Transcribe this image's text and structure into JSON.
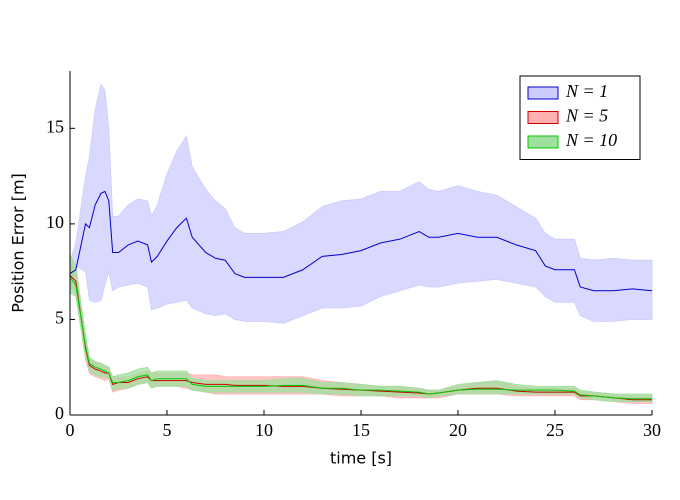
{
  "chart_data": {
    "type": "band-line",
    "x_label": "time [s]",
    "y_label": "Position Error [m]",
    "x": [
      0,
      0.3,
      0.8,
      1,
      1.3,
      1.6,
      1.8,
      2,
      2.2,
      2.5,
      3,
      3.5,
      4,
      4.2,
      4.5,
      5,
      5.5,
      6,
      6.3,
      7,
      7.5,
      8,
      8.5,
      9,
      10,
      11,
      12,
      13,
      14,
      15,
      16,
      17,
      18,
      18.5,
      19,
      20,
      21,
      22,
      23,
      24,
      24.5,
      25,
      26,
      26.3,
      27,
      28,
      29,
      30
    ],
    "xlim": [
      0,
      30
    ],
    "xticks": [
      0,
      5,
      10,
      15,
      20,
      25,
      30
    ],
    "ylim": [
      0,
      18
    ],
    "yticks": [
      0,
      5,
      10,
      15
    ],
    "legend": "upper-right",
    "series": [
      {
        "name": "N = 1",
        "color": "#0000cc",
        "band_color": "#ccccff",
        "values": [
          7.4,
          7.6,
          10.0,
          9.8,
          11.0,
          11.6,
          11.7,
          11.2,
          8.5,
          8.5,
          8.9,
          9.1,
          8.9,
          8.0,
          8.3,
          9.1,
          9.8,
          10.3,
          9.3,
          8.5,
          8.2,
          8.1,
          7.4,
          7.2,
          7.2,
          7.2,
          7.6,
          8.3,
          8.4,
          8.6,
          9.0,
          9.2,
          9.6,
          9.3,
          9.3,
          9.5,
          9.3,
          9.3,
          8.9,
          8.6,
          7.8,
          7.6,
          7.6,
          6.7,
          6.5,
          6.5,
          6.6,
          6.5
        ],
        "upper": [
          8.0,
          9.0,
          12.5,
          13.5,
          16.0,
          17.3,
          17.0,
          15.0,
          10.4,
          10.4,
          11.0,
          11.3,
          11.2,
          10.4,
          11.0,
          12.6,
          13.8,
          14.6,
          13.0,
          11.8,
          11.2,
          10.8,
          9.8,
          9.5,
          9.5,
          9.6,
          10.1,
          10.9,
          11.2,
          11.3,
          11.7,
          11.7,
          12.2,
          11.8,
          11.7,
          12.0,
          11.7,
          11.5,
          10.9,
          10.3,
          9.5,
          9.2,
          9.2,
          8.2,
          8.1,
          8.2,
          8.1,
          8.1
        ],
        "lower": [
          6.6,
          7.8,
          7.5,
          6.0,
          5.9,
          6.0,
          6.8,
          7.5,
          6.5,
          6.7,
          6.8,
          6.9,
          6.7,
          5.5,
          5.6,
          5.8,
          5.9,
          6.0,
          5.6,
          5.3,
          5.2,
          5.3,
          5.0,
          4.9,
          4.9,
          4.8,
          5.2,
          5.6,
          5.6,
          5.7,
          6.2,
          6.5,
          6.8,
          6.7,
          6.7,
          6.9,
          7.0,
          7.1,
          6.9,
          6.7,
          6.2,
          5.9,
          5.9,
          5.2,
          4.9,
          4.9,
          5.0,
          5.0
        ]
      },
      {
        "name": "N = 5",
        "color": "#cc0000",
        "band_color": "#ffb0b0",
        "values": [
          7.3,
          7.0,
          3.5,
          2.6,
          2.4,
          2.3,
          2.2,
          2.2,
          1.6,
          1.7,
          1.7,
          1.9,
          2.0,
          1.8,
          1.8,
          1.8,
          1.8,
          1.8,
          1.7,
          1.6,
          1.6,
          1.6,
          1.55,
          1.55,
          1.55,
          1.5,
          1.5,
          1.4,
          1.35,
          1.3,
          1.25,
          1.2,
          1.15,
          1.1,
          1.15,
          1.3,
          1.4,
          1.4,
          1.25,
          1.2,
          1.2,
          1.2,
          1.2,
          1.0,
          1.0,
          0.9,
          0.8,
          0.8
        ],
        "upper": [
          7.9,
          7.6,
          4.1,
          3.0,
          2.8,
          2.7,
          2.6,
          2.5,
          2.0,
          2.0,
          2.0,
          2.2,
          2.3,
          2.2,
          2.2,
          2.2,
          2.2,
          2.2,
          2.1,
          2.1,
          2.1,
          2.0,
          2.0,
          2.0,
          2.0,
          2.0,
          2.0,
          1.8,
          1.7,
          1.6,
          1.5,
          1.5,
          1.4,
          1.3,
          1.3,
          1.5,
          1.7,
          1.8,
          1.5,
          1.4,
          1.4,
          1.4,
          1.4,
          1.2,
          1.2,
          1.1,
          1.0,
          1.0
        ],
        "lower": [
          6.7,
          6.4,
          2.9,
          2.2,
          2.0,
          1.9,
          1.8,
          1.9,
          1.2,
          1.3,
          1.4,
          1.6,
          1.7,
          1.5,
          1.5,
          1.5,
          1.5,
          1.4,
          1.3,
          1.2,
          1.1,
          1.1,
          1.1,
          1.1,
          1.1,
          1.1,
          1.1,
          1.1,
          1.0,
          1.0,
          1.0,
          0.9,
          0.9,
          0.9,
          0.9,
          1.1,
          1.1,
          1.1,
          1.0,
          1.0,
          1.0,
          1.0,
          1.0,
          0.8,
          0.8,
          0.7,
          0.6,
          0.6
        ]
      },
      {
        "name": "N = 10",
        "color": "#00cc00",
        "band_color": "#9fe09f",
        "values": [
          7.2,
          6.8,
          3.6,
          2.7,
          2.5,
          2.4,
          2.3,
          2.2,
          1.7,
          1.7,
          1.8,
          2.0,
          2.1,
          1.8,
          1.9,
          1.9,
          1.9,
          1.9,
          1.6,
          1.5,
          1.5,
          1.5,
          1.5,
          1.5,
          1.5,
          1.55,
          1.55,
          1.4,
          1.4,
          1.3,
          1.3,
          1.25,
          1.2,
          1.1,
          1.15,
          1.3,
          1.35,
          1.35,
          1.3,
          1.3,
          1.3,
          1.3,
          1.25,
          1.05,
          1.0,
          0.9,
          0.85,
          0.85
        ],
        "upper": [
          8.4,
          7.8,
          4.2,
          3.0,
          2.8,
          2.7,
          2.6,
          2.5,
          2.0,
          2.1,
          2.2,
          2.4,
          2.5,
          2.2,
          2.3,
          2.3,
          2.3,
          2.3,
          1.9,
          1.8,
          1.8,
          1.8,
          1.8,
          1.8,
          1.8,
          1.9,
          1.9,
          1.7,
          1.7,
          1.6,
          1.5,
          1.5,
          1.4,
          1.3,
          1.3,
          1.6,
          1.7,
          1.8,
          1.6,
          1.5,
          1.5,
          1.5,
          1.5,
          1.3,
          1.2,
          1.1,
          1.1,
          1.1
        ],
        "lower": [
          6.4,
          6.2,
          3.0,
          2.3,
          2.1,
          2.0,
          2.0,
          1.9,
          1.3,
          1.4,
          1.4,
          1.6,
          1.7,
          1.4,
          1.5,
          1.5,
          1.5,
          1.5,
          1.3,
          1.2,
          1.2,
          1.2,
          1.2,
          1.2,
          1.2,
          1.2,
          1.2,
          1.1,
          1.1,
          1.0,
          1.0,
          1.0,
          1.0,
          0.9,
          1.0,
          1.1,
          1.1,
          1.1,
          1.1,
          1.1,
          1.1,
          1.1,
          1.1,
          0.9,
          0.8,
          0.7,
          0.7,
          0.7
        ]
      }
    ]
  }
}
